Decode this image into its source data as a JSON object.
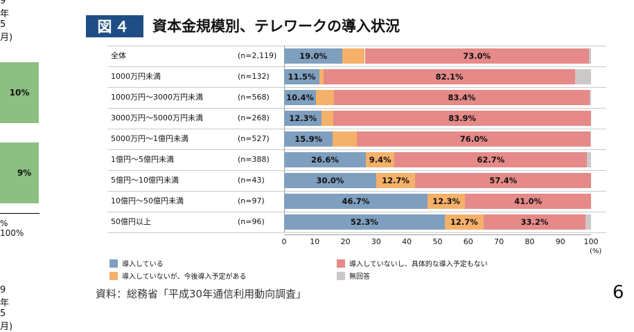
{
  "left_fragment": {
    "top_text": "9年5月)",
    "bar_labels": [
      "10%",
      "9%"
    ],
    "axis_text": "% 100%",
    "bottom_text": "9年5月)"
  },
  "header": {
    "badge": "図４",
    "title": "資本金規模別、テレワークの導入状況"
  },
  "source": "資料：総務省「平成30年通信利用動向調査」",
  "page_number": "6",
  "chart_data": {
    "type": "bar",
    "orientation": "horizontal",
    "stacked": true,
    "categories": [
      "全体",
      "1000万円未満",
      "1000万円～3000万円未満",
      "3000万円～5000万円未満",
      "5000万円～1億円未満",
      "1億円～5億円未満",
      "5億円～10億円未満",
      "10億円～50億円未満",
      "50億円以上"
    ],
    "n_labels": [
      "(n=2,119)",
      "(n=132)",
      "(n=568)",
      "(n=268)",
      "(n=527)",
      "(n=388)",
      "(n=43)",
      "(n=97)",
      "(n=96)"
    ],
    "series": [
      {
        "name": "導入している",
        "color": "#7f9fbf",
        "values": [
          19.0,
          11.5,
          10.4,
          12.3,
          15.9,
          26.6,
          30.0,
          46.7,
          52.3
        ],
        "labels": [
          "19.0%",
          "11.5%",
          "10.4%",
          "12.3%",
          "15.9%",
          "26.6%",
          "30.0%",
          "46.7%",
          "52.3%"
        ]
      },
      {
        "name": "導入していないが、今後導入予定がある",
        "color": "#f5b06a",
        "values": [
          7.3,
          1.3,
          5.8,
          3.8,
          7.9,
          9.4,
          12.7,
          12.3,
          12.7
        ],
        "labels": [
          "",
          "",
          "",
          "",
          "",
          "9.4%",
          "12.7%",
          "12.3%",
          "12.7%"
        ]
      },
      {
        "name": "導入していないし、具体的な導入予定もない",
        "color": "#e58a88",
        "values": [
          73.0,
          82.1,
          83.4,
          83.9,
          76.0,
          62.7,
          57.4,
          41.0,
          33.2
        ],
        "labels": [
          "73.0%",
          "82.1%",
          "83.4%",
          "83.9%",
          "76.0%",
          "62.7%",
          "57.4%",
          "41.0%",
          "33.2%"
        ]
      },
      {
        "name": "無回答",
        "color": "#cdc8c8",
        "values": [
          0.7,
          5.1,
          0.4,
          0.0,
          0.3,
          1.3,
          0.0,
          0.0,
          1.8
        ],
        "labels": [
          "",
          "",
          "",
          "",
          "",
          "",
          "",
          "",
          ""
        ]
      }
    ],
    "xlim": [
      0,
      100
    ],
    "xticks": [
      "0",
      "10",
      "20",
      "30",
      "40",
      "50",
      "60",
      "70",
      "80",
      "90",
      "100"
    ],
    "xunit": "(%)",
    "legend_position": "bottom"
  }
}
